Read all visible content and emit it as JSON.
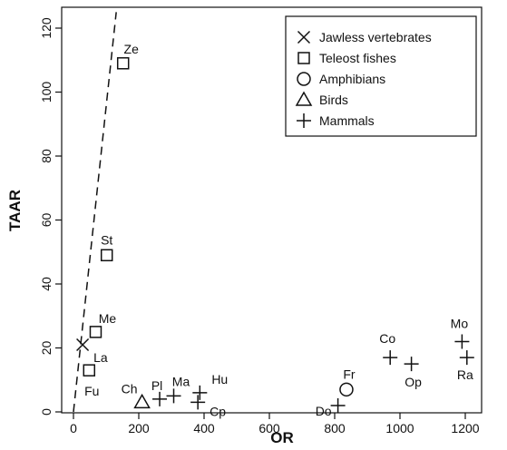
{
  "chart_data": {
    "type": "scatter",
    "xlabel": "OR",
    "ylabel": "TAAR",
    "xlim": [
      0,
      1230
    ],
    "ylim": [
      0,
      125
    ],
    "xticks": [
      0,
      200,
      400,
      600,
      800,
      1000,
      1200
    ],
    "yticks": [
      0,
      20,
      40,
      60,
      80,
      100,
      120
    ],
    "grid": false,
    "legend_position": "top-right",
    "series": [
      {
        "name": "Jawless vertebrates",
        "marker": "x",
        "points": [
          {
            "label": "La",
            "x": 28,
            "y": 21
          }
        ]
      },
      {
        "name": "Teleost fishes",
        "marker": "square",
        "points": [
          {
            "label": "Ze",
            "x": 152,
            "y": 109
          },
          {
            "label": "St",
            "x": 102,
            "y": 49
          },
          {
            "label": "Me",
            "x": 68,
            "y": 25
          },
          {
            "label": "Fu",
            "x": 48,
            "y": 13
          }
        ]
      },
      {
        "name": "Amphibians",
        "marker": "circle",
        "points": [
          {
            "label": "Fr",
            "x": 836,
            "y": 7
          }
        ]
      },
      {
        "name": "Birds",
        "marker": "triangle",
        "points": [
          {
            "label": "Ch",
            "x": 210,
            "y": 3
          }
        ]
      },
      {
        "name": "Mammals",
        "marker": "plus",
        "points": [
          {
            "label": "Pl",
            "x": 264,
            "y": 4
          },
          {
            "label": "Ma",
            "x": 307,
            "y": 5
          },
          {
            "label": "Hu",
            "x": 387,
            "y": 6
          },
          {
            "label": "Cp",
            "x": 381,
            "y": 3
          },
          {
            "label": "Do",
            "x": 810,
            "y": 2
          },
          {
            "label": "Co",
            "x": 970,
            "y": 17
          },
          {
            "label": "Op",
            "x": 1035,
            "y": 15
          },
          {
            "label": "Mo",
            "x": 1190,
            "y": 22
          },
          {
            "label": "Ra",
            "x": 1205,
            "y": 17
          }
        ]
      }
    ],
    "reference_line": {
      "style": "dashed",
      "from": [
        0,
        0
      ],
      "to": [
        131,
        125
      ]
    }
  }
}
